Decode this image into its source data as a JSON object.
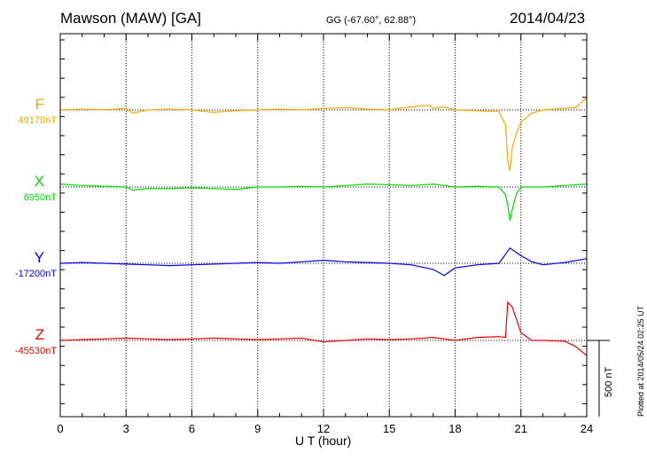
{
  "header": {
    "station": "Mawson (MAW)  [GA]",
    "coords": "GG (-67.60°,  62.88°)",
    "date": "2014/04/23"
  },
  "footer": {
    "plotted": "Plotted at 2014/05/24 02:25 UT",
    "scale_label": "500 nT"
  },
  "chart_data": {
    "type": "line",
    "xlabel": "U T (hour)",
    "xlim": [
      0,
      24
    ],
    "xticks": [
      "0",
      "3",
      "6",
      "9",
      "12",
      "15",
      "18",
      "21",
      "24"
    ],
    "scale_nT": 500,
    "series": [
      {
        "name": "F",
        "baseline": "49170nT",
        "color": "#f5a800",
        "x": [
          0,
          1,
          2,
          3,
          3.3,
          4,
          5,
          6,
          7,
          7.5,
          8,
          9,
          10,
          11,
          12,
          13,
          14,
          15,
          16,
          16.8,
          17,
          17.5,
          18,
          19,
          20,
          20.3,
          20.4,
          20.5,
          20.6,
          20.8,
          21,
          21.5,
          22,
          23,
          23.5,
          24
        ],
        "y": [
          0,
          5,
          0,
          10,
          -20,
          0,
          5,
          0,
          -15,
          -10,
          -5,
          0,
          5,
          0,
          10,
          15,
          5,
          0,
          20,
          30,
          10,
          20,
          0,
          -5,
          -10,
          -100,
          -330,
          -400,
          -250,
          -150,
          -80,
          -20,
          0,
          10,
          15,
          80
        ]
      },
      {
        "name": "X",
        "baseline": "6950nT",
        "color": "#00dd00",
        "x": [
          0,
          1,
          2,
          3,
          3.3,
          4,
          5,
          6,
          7,
          8,
          9,
          10,
          11,
          12,
          13,
          14,
          15,
          16,
          17,
          17.5,
          18,
          19,
          20,
          20.3,
          20.4,
          20.5,
          20.6,
          20.8,
          21,
          22,
          23,
          24
        ],
        "y": [
          20,
          10,
          5,
          0,
          -20,
          -10,
          -10,
          -5,
          -10,
          -15,
          0,
          0,
          5,
          0,
          10,
          20,
          15,
          10,
          20,
          10,
          0,
          5,
          0,
          -50,
          -120,
          -220,
          -150,
          -40,
          0,
          0,
          10,
          20
        ]
      },
      {
        "name": "Y",
        "baseline": "-17200nT",
        "color": "#0000ee",
        "x": [
          0,
          1,
          2,
          3,
          4,
          5,
          6,
          7,
          8,
          9,
          10,
          11,
          12,
          13,
          14,
          15,
          16,
          17,
          17.5,
          18,
          19,
          20,
          20.3,
          20.5,
          20.7,
          21,
          21.5,
          22,
          23,
          24
        ],
        "y": [
          0,
          5,
          0,
          -5,
          -10,
          -15,
          -10,
          -5,
          0,
          5,
          0,
          10,
          20,
          10,
          5,
          0,
          -10,
          -40,
          -80,
          -30,
          -10,
          0,
          60,
          100,
          80,
          50,
          10,
          -10,
          5,
          30
        ]
      },
      {
        "name": "Z",
        "baseline": "-45530nT",
        "color": "#ee0000",
        "x": [
          0,
          1,
          2,
          3,
          4,
          5,
          6,
          7,
          8,
          9,
          10,
          11,
          12,
          13,
          14,
          15,
          16,
          17,
          17.5,
          18,
          19,
          20,
          20.3,
          20.4,
          20.6,
          21,
          21.5,
          22,
          23,
          23.5,
          24
        ],
        "y": [
          0,
          5,
          10,
          15,
          10,
          5,
          10,
          15,
          10,
          5,
          10,
          15,
          -10,
          0,
          10,
          5,
          10,
          20,
          10,
          0,
          20,
          25,
          20,
          250,
          220,
          50,
          0,
          0,
          -5,
          -40,
          -100
        ]
      }
    ]
  }
}
